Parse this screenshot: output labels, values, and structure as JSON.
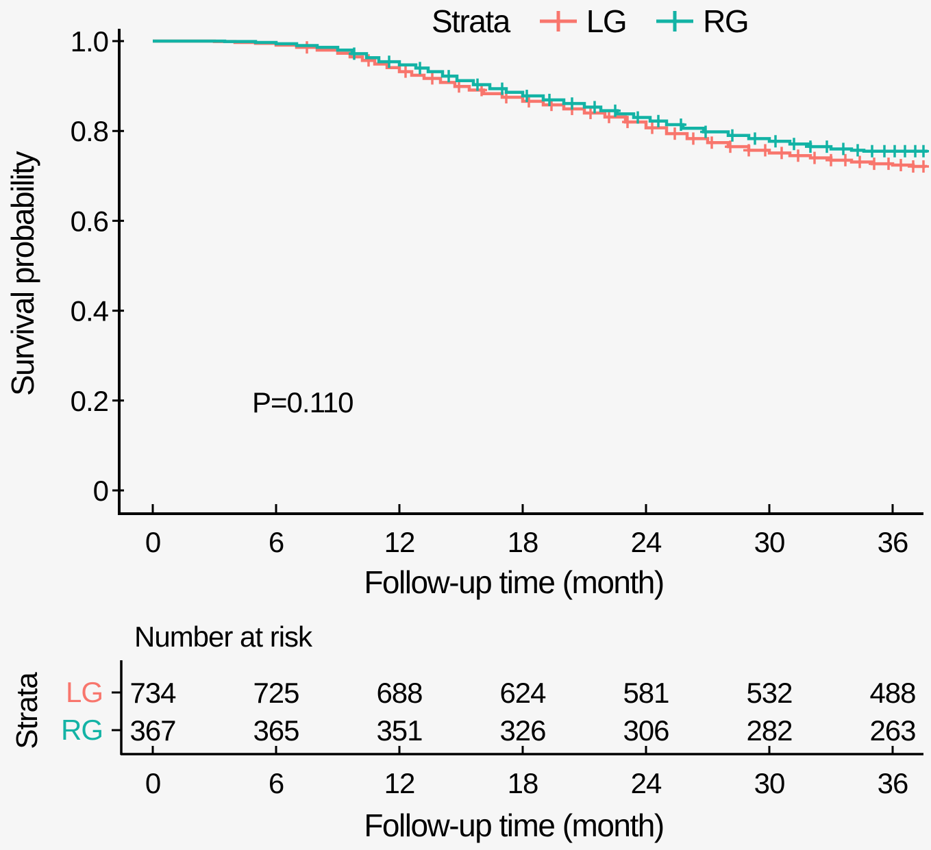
{
  "figure": {
    "background": "#f6f6f6",
    "legend": {
      "title": "Strata",
      "items": [
        {
          "label": "LG",
          "color": "#F8766D"
        },
        {
          "label": "RG",
          "color": "#13B3A5"
        }
      ]
    },
    "p_value": "P=0.110",
    "ylabel": "Survival probability",
    "xlabel": "Follow-up time (month)",
    "risk_table": {
      "title": "Number at risk",
      "strata_label": "Strata",
      "xlabel": "Follow-up time (month)"
    }
  },
  "chart_data": {
    "type": "line",
    "subtype": "kaplan-meier-step",
    "title": "",
    "xlabel": "Follow-up time (month)",
    "ylabel": "Survival probability",
    "xlim": [
      0,
      38
    ],
    "ylim": [
      0,
      1.0
    ],
    "xticks": [
      0,
      6,
      12,
      18,
      24,
      30,
      36
    ],
    "yticks": [
      0,
      0.2,
      0.4,
      0.6,
      0.8,
      1.0
    ],
    "ytick_labels": [
      "0",
      "0.2",
      "0.4",
      "0.6",
      "0.8",
      "1.0"
    ],
    "grid": false,
    "legend_position": "top",
    "annotations": [
      {
        "text": "P=0.110",
        "x": 4.8,
        "y": 0.2
      }
    ],
    "series": [
      {
        "name": "LG",
        "color": "#F8766D",
        "steps": [
          [
            0,
            1.0
          ],
          [
            3,
            0.999
          ],
          [
            4,
            0.997
          ],
          [
            5,
            0.995
          ],
          [
            6,
            0.991
          ],
          [
            7,
            0.986
          ],
          [
            8,
            0.98
          ],
          [
            9,
            0.973
          ],
          [
            9.6,
            0.965
          ],
          [
            10.2,
            0.957
          ],
          [
            10.8,
            0.949
          ],
          [
            11.4,
            0.941
          ],
          [
            12,
            0.932
          ],
          [
            12.6,
            0.924
          ],
          [
            13.2,
            0.917
          ],
          [
            14,
            0.908
          ],
          [
            14.7,
            0.899
          ],
          [
            15.4,
            0.891
          ],
          [
            16.1,
            0.883
          ],
          [
            17,
            0.875
          ],
          [
            18,
            0.866
          ],
          [
            19,
            0.858
          ],
          [
            20,
            0.849
          ],
          [
            21,
            0.84
          ],
          [
            22,
            0.831
          ],
          [
            23,
            0.82
          ],
          [
            24,
            0.807
          ],
          [
            25,
            0.794
          ],
          [
            26,
            0.783
          ],
          [
            27,
            0.774
          ],
          [
            28,
            0.765
          ],
          [
            29,
            0.757
          ],
          [
            30,
            0.751
          ],
          [
            31,
            0.745
          ],
          [
            32,
            0.74
          ],
          [
            33,
            0.735
          ],
          [
            34,
            0.731
          ],
          [
            35,
            0.727
          ],
          [
            36,
            0.724
          ],
          [
            37,
            0.721
          ],
          [
            37.6,
            0.719
          ]
        ],
        "censor_times": [
          7.5,
          10.5,
          12.3,
          13.6,
          14.9,
          16,
          17.2,
          18.3,
          19.4,
          20.4,
          21.3,
          22.2,
          23.1,
          24.3,
          25.4,
          26.3,
          27.2,
          28.1,
          29,
          29.8,
          30.6,
          31.4,
          32.2,
          33,
          33.7,
          34.4,
          35.1,
          35.8,
          36.4,
          37,
          37.5
        ]
      },
      {
        "name": "RG",
        "color": "#13B3A5",
        "steps": [
          [
            0,
            1.0
          ],
          [
            3.5,
            0.999
          ],
          [
            5,
            0.997
          ],
          [
            6,
            0.994
          ],
          [
            7,
            0.99
          ],
          [
            8,
            0.986
          ],
          [
            9,
            0.98
          ],
          [
            9.7,
            0.972
          ],
          [
            10.4,
            0.963
          ],
          [
            11,
            0.954
          ],
          [
            12,
            0.947
          ],
          [
            12.8,
            0.94
          ],
          [
            13.4,
            0.932
          ],
          [
            14.1,
            0.922
          ],
          [
            14.8,
            0.912
          ],
          [
            15.6,
            0.903
          ],
          [
            16.4,
            0.894
          ],
          [
            17.2,
            0.886
          ],
          [
            18,
            0.878
          ],
          [
            19,
            0.869
          ],
          [
            20,
            0.861
          ],
          [
            21,
            0.853
          ],
          [
            21.8,
            0.845
          ],
          [
            22.6,
            0.838
          ],
          [
            23.4,
            0.83
          ],
          [
            24.2,
            0.822
          ],
          [
            25,
            0.814
          ],
          [
            25.8,
            0.806
          ],
          [
            26.8,
            0.798
          ],
          [
            28,
            0.79
          ],
          [
            29,
            0.783
          ],
          [
            30,
            0.777
          ],
          [
            31,
            0.771
          ],
          [
            32,
            0.765
          ],
          [
            33,
            0.76
          ],
          [
            34,
            0.757
          ],
          [
            34.6,
            0.755
          ],
          [
            37.7,
            0.755
          ]
        ],
        "censor_times": [
          9.8,
          11.5,
          13,
          14.4,
          15.8,
          17,
          18.2,
          19.3,
          20.4,
          21.5,
          22.5,
          23.6,
          24.6,
          25.7,
          26.9,
          28.2,
          29.3,
          30.3,
          31.2,
          32,
          32.8,
          33.6,
          34.3,
          35,
          35.6,
          36.1,
          36.6,
          37.1,
          37.5
        ]
      }
    ],
    "risk_table": {
      "title": "Number at risk",
      "times": [
        0,
        6,
        12,
        18,
        24,
        30,
        36
      ],
      "rows": [
        {
          "name": "LG",
          "color": "#F8766D",
          "values": [
            734,
            725,
            688,
            624,
            581,
            532,
            488
          ]
        },
        {
          "name": "RG",
          "color": "#13B3A5",
          "values": [
            367,
            365,
            351,
            326,
            306,
            282,
            263
          ]
        }
      ]
    }
  }
}
